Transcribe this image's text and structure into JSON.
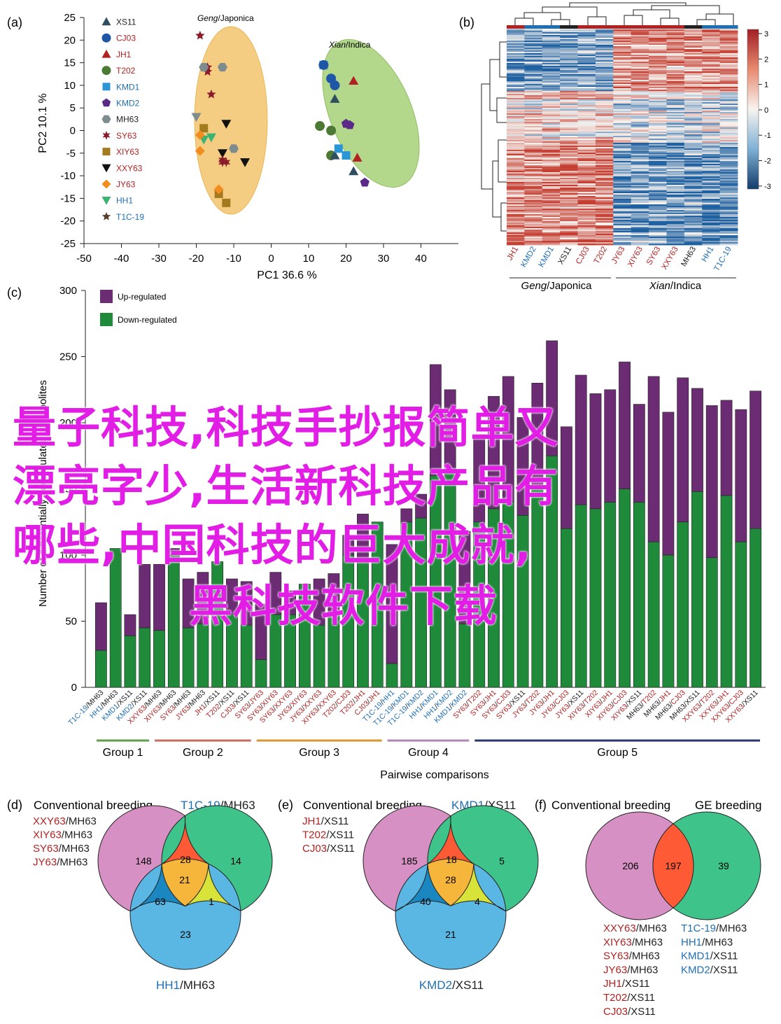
{
  "panel_a": {
    "label": "(a)",
    "xlabel": "PC1 36.6 %",
    "ylabel": "PC2 10.1 %",
    "xticks": [
      "-50",
      "-40",
      "-30",
      "-20",
      "-10",
      "0",
      "10",
      "20",
      "30",
      "40"
    ],
    "yticks": [
      "25",
      "20",
      "15",
      "10",
      "5",
      "0",
      "-5",
      "-10",
      "-15",
      "-20",
      "-25"
    ],
    "ellipse_labels": [
      {
        "italic": "Geng",
        "rest": "/Japonica"
      },
      {
        "italic": "Xian",
        "rest": "/Indica"
      }
    ],
    "legend": [
      {
        "name": "XS11",
        "color": "#2f4f5f",
        "marker": "triangle-up"
      },
      {
        "name": "CJ03",
        "color": "#1f57a6",
        "marker": "circle"
      },
      {
        "name": "JH1",
        "color": "#b22222",
        "marker": "triangle-up"
      },
      {
        "name": "T202",
        "color": "#4c7a34",
        "marker": "circle"
      },
      {
        "name": "KMD1",
        "color": "#2b95d6",
        "marker": "square"
      },
      {
        "name": "KMD2",
        "color": "#5b2a86",
        "marker": "pentagon"
      },
      {
        "name": "MH63",
        "color": "#7f8c8d",
        "marker": "hexagon"
      },
      {
        "name": "SY63",
        "color": "#8b1a2b",
        "marker": "star6"
      },
      {
        "name": "XIY63",
        "color": "#a47a1e",
        "marker": "square"
      },
      {
        "name": "XXY63",
        "color": "#111111",
        "marker": "triangle-down"
      },
      {
        "name": "JY63",
        "color": "#f28c1e",
        "marker": "diamond"
      },
      {
        "name": "HH1",
        "color": "#3cb371",
        "marker": "triangle-down"
      },
      {
        "name": "T1C-19",
        "color": "#5a3e2b",
        "marker": "star5"
      }
    ],
    "legend_label_colors": [
      "#222",
      "#b22222",
      "#b22222",
      "#b22222",
      "#1f6fb5",
      "#1f6fb5",
      "#222",
      "#b22222",
      "#b22222",
      "#b22222",
      "#b22222",
      "#1f6fb5",
      "#1f6fb5"
    ]
  },
  "panel_b": {
    "label": "(b)",
    "colorbar_ticks": [
      "3",
      "2",
      "1",
      "0",
      "-1",
      "-2",
      "-3"
    ],
    "columns": [
      {
        "name": "JH1",
        "color": "#b22222"
      },
      {
        "name": "KMD2",
        "color": "#1f6fb5"
      },
      {
        "name": "KMD1",
        "color": "#1f6fb5"
      },
      {
        "name": "XS11",
        "color": "#222"
      },
      {
        "name": "CJ03",
        "color": "#b22222"
      },
      {
        "name": "T202",
        "color": "#b22222"
      },
      {
        "name": "JY63",
        "color": "#b22222"
      },
      {
        "name": "XIY63",
        "color": "#b22222"
      },
      {
        "name": "SY63",
        "color": "#b22222"
      },
      {
        "name": "XXY63",
        "color": "#b22222"
      },
      {
        "name": "MH63",
        "color": "#222"
      },
      {
        "name": "HH1",
        "color": "#1f6fb5"
      },
      {
        "name": "T1C-19",
        "color": "#1f6fb5"
      }
    ],
    "groups": [
      {
        "italic": "Geng",
        "rest": "/Japonica"
      },
      {
        "italic": "Xian",
        "rest": "/Indica"
      }
    ]
  },
  "panel_c": {
    "label": "(c)",
    "xlabel": "Pairwise comparisons",
    "ylabel": "Number of differentially accumulated metabolites",
    "legend": [
      {
        "name": "Up-regulated",
        "color": "#6b2c73"
      },
      {
        "name": "Down-regulated",
        "color": "#1f8a3a"
      }
    ],
    "groups": [
      {
        "name": "Group 1",
        "color": "#5f9e4e"
      },
      {
        "name": "Group 2",
        "color": "#c76b5f"
      },
      {
        "name": "Group 3",
        "color": "#d79a32"
      },
      {
        "name": "Group 4",
        "color": "#b184b8"
      },
      {
        "name": "Group 5",
        "color": "#28356e"
      }
    ]
  },
  "chart_data": {
    "type": "bar",
    "stacked": true,
    "ylim": [
      0,
      300
    ],
    "yticks": [
      0,
      50,
      100,
      150,
      200,
      250,
      300
    ],
    "categories": [
      {
        "a": "T1C-19",
        "ac": "#1f6fb5",
        "b": "MH63",
        "bc": "#222"
      },
      {
        "a": "HH1",
        "ac": "#1f6fb5",
        "b": "MH63",
        "bc": "#222"
      },
      {
        "a": "KMD1",
        "ac": "#1f6fb5",
        "b": "XS11",
        "bc": "#222"
      },
      {
        "a": "KMD2",
        "ac": "#1f6fb5",
        "b": "XS11",
        "bc": "#222"
      },
      {
        "a": "XXY63",
        "ac": "#b22222",
        "b": "MH63",
        "bc": "#222"
      },
      {
        "a": "XIY63",
        "ac": "#b22222",
        "b": "MH63",
        "bc": "#222"
      },
      {
        "a": "SY63",
        "ac": "#b22222",
        "b": "MH63",
        "bc": "#222"
      },
      {
        "a": "JY63",
        "ac": "#b22222",
        "b": "MH63",
        "bc": "#222"
      },
      {
        "a": "JH1",
        "ac": "#b22222",
        "b": "XS11",
        "bc": "#222"
      },
      {
        "a": "T202",
        "ac": "#b22222",
        "b": "XS11",
        "bc": "#222"
      },
      {
        "a": "CJ03",
        "ac": "#b22222",
        "b": "XS11",
        "bc": "#222"
      },
      {
        "a": "SY63",
        "ac": "#b22222",
        "b": "JY63",
        "bc": "#b22222"
      },
      {
        "a": "SY63",
        "ac": "#b22222",
        "b": "XIY63",
        "bc": "#b22222"
      },
      {
        "a": "SY63",
        "ac": "#b22222",
        "b": "XXY63",
        "bc": "#b22222"
      },
      {
        "a": "JY63",
        "ac": "#b22222",
        "b": "XIY63",
        "bc": "#b22222"
      },
      {
        "a": "JY63",
        "ac": "#b22222",
        "b": "XXY63",
        "bc": "#b22222"
      },
      {
        "a": "XIY63",
        "ac": "#b22222",
        "b": "XXY63",
        "bc": "#b22222"
      },
      {
        "a": "T202",
        "ac": "#b22222",
        "b": "CJ03",
        "bc": "#b22222"
      },
      {
        "a": "T202",
        "ac": "#b22222",
        "b": "JH1",
        "bc": "#b22222"
      },
      {
        "a": "CJ03",
        "ac": "#b22222",
        "b": "JH1",
        "bc": "#b22222"
      },
      {
        "a": "T1C-19",
        "ac": "#1f6fb5",
        "b": "HH1",
        "bc": "#1f6fb5"
      },
      {
        "a": "T1C-19",
        "ac": "#1f6fb5",
        "b": "KMD1",
        "bc": "#1f6fb5"
      },
      {
        "a": "T1C-19",
        "ac": "#1f6fb5",
        "b": "KMD2",
        "bc": "#1f6fb5"
      },
      {
        "a": "HH1",
        "ac": "#1f6fb5",
        "b": "KMD1",
        "bc": "#1f6fb5"
      },
      {
        "a": "HH1",
        "ac": "#1f6fb5",
        "b": "KMD2",
        "bc": "#1f6fb5"
      },
      {
        "a": "KMD1",
        "ac": "#1f6fb5",
        "b": "KMD2",
        "bc": "#1f6fb5"
      },
      {
        "a": "SY63",
        "ac": "#b22222",
        "b": "T202",
        "bc": "#b22222"
      },
      {
        "a": "SY63",
        "ac": "#b22222",
        "b": "JH1",
        "bc": "#b22222"
      },
      {
        "a": "SY63",
        "ac": "#b22222",
        "b": "CJ03",
        "bc": "#b22222"
      },
      {
        "a": "SY63",
        "ac": "#b22222",
        "b": "XS11",
        "bc": "#222"
      },
      {
        "a": "JY63",
        "ac": "#b22222",
        "b": "T202",
        "bc": "#b22222"
      },
      {
        "a": "JY63",
        "ac": "#b22222",
        "b": "JH1",
        "bc": "#b22222"
      },
      {
        "a": "JY63",
        "ac": "#b22222",
        "b": "CJ03",
        "bc": "#b22222"
      },
      {
        "a": "JY63",
        "ac": "#b22222",
        "b": "XS11",
        "bc": "#222"
      },
      {
        "a": "XIY63",
        "ac": "#b22222",
        "b": "T202",
        "bc": "#b22222"
      },
      {
        "a": "XIY63",
        "ac": "#b22222",
        "b": "JH1",
        "bc": "#b22222"
      },
      {
        "a": "XIY63",
        "ac": "#b22222",
        "b": "CJ03",
        "bc": "#b22222"
      },
      {
        "a": "XIY63",
        "ac": "#b22222",
        "b": "XS11",
        "bc": "#222"
      },
      {
        "a": "MH63",
        "ac": "#222",
        "b": "T202",
        "bc": "#b22222"
      },
      {
        "a": "MH63",
        "ac": "#222",
        "b": "JH1",
        "bc": "#b22222"
      },
      {
        "a": "MH63",
        "ac": "#222",
        "b": "CJ03",
        "bc": "#b22222"
      },
      {
        "a": "MH63",
        "ac": "#222",
        "b": "XS11",
        "bc": "#222"
      },
      {
        "a": "XXY63",
        "ac": "#b22222",
        "b": "T202",
        "bc": "#b22222"
      },
      {
        "a": "XXY63",
        "ac": "#b22222",
        "b": "JH1",
        "bc": "#b22222"
      },
      {
        "a": "XXY63",
        "ac": "#b22222",
        "b": "CJ03",
        "bc": "#b22222"
      },
      {
        "a": "XXY63",
        "ac": "#b22222",
        "b": "XS11",
        "bc": "#222"
      }
    ],
    "group_sizes": [
      4,
      7,
      9,
      6,
      20
    ],
    "series": [
      {
        "name": "Down-regulated",
        "color": "#1f8a3a",
        "values": [
          28,
          105,
          39,
          45,
          43,
          100,
          45,
          48,
          95,
          55,
          47,
          21,
          55,
          55,
          78,
          47,
          55,
          100,
          98,
          125,
          18,
          125,
          128,
          160,
          165,
          48,
          125,
          135,
          140,
          130,
          150,
          175,
          120,
          138,
          135,
          140,
          150,
          140,
          110,
          100,
          125,
          148,
          98,
          145,
          110,
          120
        ]
      },
      {
        "name": "Up-regulated",
        "color": "#6b2c73",
        "values": [
          36,
          0,
          16,
          48,
          50,
          5,
          37,
          39,
          0,
          27,
          33,
          42,
          32,
          18,
          0,
          35,
          31,
          15,
          33,
          0,
          90,
          10,
          18,
          84,
          60,
          70,
          65,
          85,
          95,
          74,
          80,
          87,
          77,
          98,
          87,
          85,
          96,
          74,
          125,
          108,
          109,
          78,
          115,
          72,
          100,
          104
        ]
      }
    ]
  },
  "venn_d": {
    "label": "(d)",
    "title_left": "Conventional breeding",
    "title_right_a": "T1C-19",
    "title_right_b": "/MH63",
    "list": [
      {
        "a": "XXY63",
        "b": "/MH63"
      },
      {
        "a": "XIY63",
        "b": "/MH63"
      },
      {
        "a": "SY63",
        "b": "/MH63"
      },
      {
        "a": "JY63",
        "b": "/MH63"
      }
    ],
    "bottom_a": "HH1",
    "bottom_b": "/MH63",
    "counts": {
      "left": "148",
      "right": "14",
      "bottom": "23",
      "lr": "28",
      "lb": "63",
      "rb": "1",
      "center": "21"
    }
  },
  "venn_e": {
    "label": "(e)",
    "title_left": "Conventional breeding",
    "title_right_a": "KMD1",
    "title_right_b": "/XS11",
    "list": [
      {
        "a": "JH1",
        "b": "/XS11"
      },
      {
        "a": "T202",
        "b": "/XS11"
      },
      {
        "a": "CJ03",
        "b": "/XS11"
      }
    ],
    "bottom_a": "KMD2",
    "bottom_b": "/XS11",
    "counts": {
      "left": "185",
      "right": "5",
      "bottom": "21",
      "lr": "18",
      "lb": "40",
      "rb": "4",
      "center": "28"
    }
  },
  "venn_f": {
    "label": "(f)",
    "title_left": "Conventional breeding",
    "title_right": "GE breeding",
    "counts": {
      "left": "206",
      "overlap": "197",
      "right": "39"
    },
    "list_left": [
      {
        "a": "XXY63",
        "b": "/MH63"
      },
      {
        "a": "XIY63",
        "b": "/MH63"
      },
      {
        "a": "SY63",
        "b": "/MH63"
      },
      {
        "a": "JY63",
        "b": "/MH63"
      },
      {
        "a": "JH1",
        "b": "/XS11"
      },
      {
        "a": "T202",
        "b": "/XS11"
      },
      {
        "a": "CJ03",
        "b": "/XS11"
      }
    ],
    "list_right": [
      {
        "a": "T1C-19",
        "b": "/MH63"
      },
      {
        "a": "HH1",
        "b": "/MH63"
      },
      {
        "a": "KMD1",
        "b": "/XS11"
      },
      {
        "a": "KMD2",
        "b": "/XS11"
      }
    ]
  },
  "overlay_text": [
    "量子科技,科技手抄报简单又",
    "漂亮字少,生活新科技产品有",
    "哪些,中国科技的巨大成就,",
    "黑科技软件下载"
  ]
}
